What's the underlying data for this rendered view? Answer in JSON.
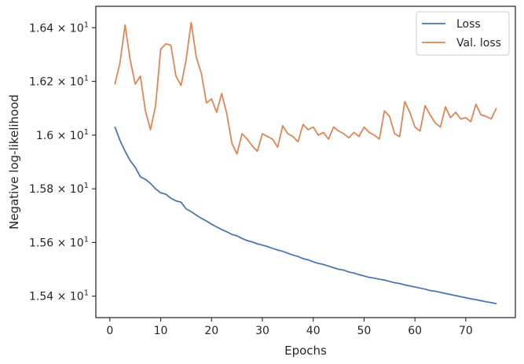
{
  "chart_data": {
    "type": "line",
    "xlabel": "Epochs",
    "ylabel": "Negative log-likelihood",
    "xlim": [
      -2.75,
      79.75
    ],
    "ylim": [
      15.32,
      16.48
    ],
    "x_ticks": [
      0,
      10,
      20,
      30,
      40,
      50,
      60,
      70
    ],
    "x_tick_labels": [
      "0",
      "10",
      "20",
      "30",
      "40",
      "50",
      "60",
      "70"
    ],
    "y_ticks": [
      15.4,
      15.6,
      15.8,
      16.0,
      16.2,
      16.4
    ],
    "y_tick_mantissas": [
      "1.54",
      "1.56",
      "1.58",
      "1.6",
      "1.62",
      "1.64"
    ],
    "y_tick_base": "× 10",
    "y_tick_exponent": "1",
    "grid": false,
    "legend_position": "top-right",
    "x": [
      1,
      2,
      3,
      4,
      5,
      6,
      7,
      8,
      9,
      10,
      11,
      12,
      13,
      14,
      15,
      16,
      17,
      18,
      19,
      20,
      21,
      22,
      23,
      24,
      25,
      26,
      27,
      28,
      29,
      30,
      31,
      32,
      33,
      34,
      35,
      36,
      37,
      38,
      39,
      40,
      41,
      42,
      43,
      44,
      45,
      46,
      47,
      48,
      49,
      50,
      51,
      52,
      53,
      54,
      55,
      56,
      57,
      58,
      59,
      60,
      61,
      62,
      63,
      64,
      65,
      66,
      67,
      68,
      69,
      70,
      71,
      72,
      73,
      74,
      75,
      76
    ],
    "series": [
      {
        "name": "Loss",
        "color": "#4c72b0",
        "values": [
          16.03,
          15.98,
          15.94,
          15.905,
          15.88,
          15.845,
          15.835,
          15.82,
          15.8,
          15.785,
          15.78,
          15.765,
          15.755,
          15.75,
          15.725,
          15.715,
          15.702,
          15.69,
          15.68,
          15.668,
          15.658,
          15.648,
          15.64,
          15.63,
          15.625,
          15.615,
          15.607,
          15.602,
          15.595,
          15.59,
          15.585,
          15.578,
          15.572,
          15.567,
          15.56,
          15.553,
          15.548,
          15.54,
          15.535,
          15.528,
          15.522,
          15.518,
          15.512,
          15.506,
          15.5,
          15.497,
          15.49,
          15.486,
          15.48,
          15.475,
          15.47,
          15.467,
          15.463,
          15.46,
          15.455,
          15.45,
          15.447,
          15.442,
          15.438,
          15.434,
          15.43,
          15.426,
          15.421,
          15.418,
          15.414,
          15.41,
          15.406,
          15.402,
          15.398,
          15.394,
          15.39,
          15.387,
          15.383,
          15.379,
          15.376,
          15.372
        ]
      },
      {
        "name": "Val. loss",
        "color": "#dd8452",
        "values": [
          16.19,
          16.27,
          16.41,
          16.28,
          16.19,
          16.22,
          16.09,
          16.02,
          16.11,
          16.32,
          16.34,
          16.335,
          16.22,
          16.185,
          16.28,
          16.42,
          16.29,
          16.23,
          16.12,
          16.135,
          16.085,
          16.155,
          16.08,
          15.97,
          15.93,
          16.005,
          15.985,
          15.96,
          15.94,
          16.005,
          15.995,
          15.985,
          15.955,
          16.035,
          16.005,
          15.995,
          15.975,
          16.04,
          16.02,
          16.03,
          16.0,
          16.01,
          15.985,
          16.03,
          16.015,
          16.005,
          15.99,
          16.01,
          15.995,
          16.03,
          16.01,
          16.0,
          15.985,
          16.09,
          16.07,
          16.005,
          15.995,
          16.125,
          16.085,
          16.03,
          16.015,
          16.11,
          16.075,
          16.045,
          16.03,
          16.105,
          16.065,
          16.085,
          16.06,
          16.065,
          16.05,
          16.115,
          16.075,
          16.07,
          16.06,
          16.1
        ]
      }
    ]
  }
}
